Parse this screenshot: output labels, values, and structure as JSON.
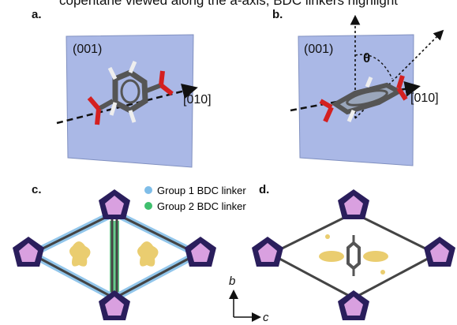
{
  "caption_fragment": "copentane viewed along the a-axis, BDC linkers highlight",
  "panels": {
    "a": {
      "label": "a.",
      "plane": "(001)",
      "axis": "[010]"
    },
    "b": {
      "label": "b.",
      "plane": "(001)",
      "axis": "[010]",
      "angle": "θ"
    },
    "c": {
      "label": "c."
    },
    "d": {
      "label": "d."
    }
  },
  "legend": [
    {
      "label": "Group 1 BDC linker",
      "color": "#7fbde8"
    },
    {
      "label": "Group 2 BDC linker",
      "color": "#3fbf6e"
    }
  ],
  "axes_triad": {
    "vertical": "b",
    "horizontal": "c"
  },
  "colors": {
    "plane": "#aab8e6",
    "carbon": "#555555",
    "oxygen": "#d42020",
    "hydrogen": "#ffffff",
    "cluster": "#2a1e5c",
    "cluster_face": "#d9a0e0",
    "density": "#e8c860"
  }
}
